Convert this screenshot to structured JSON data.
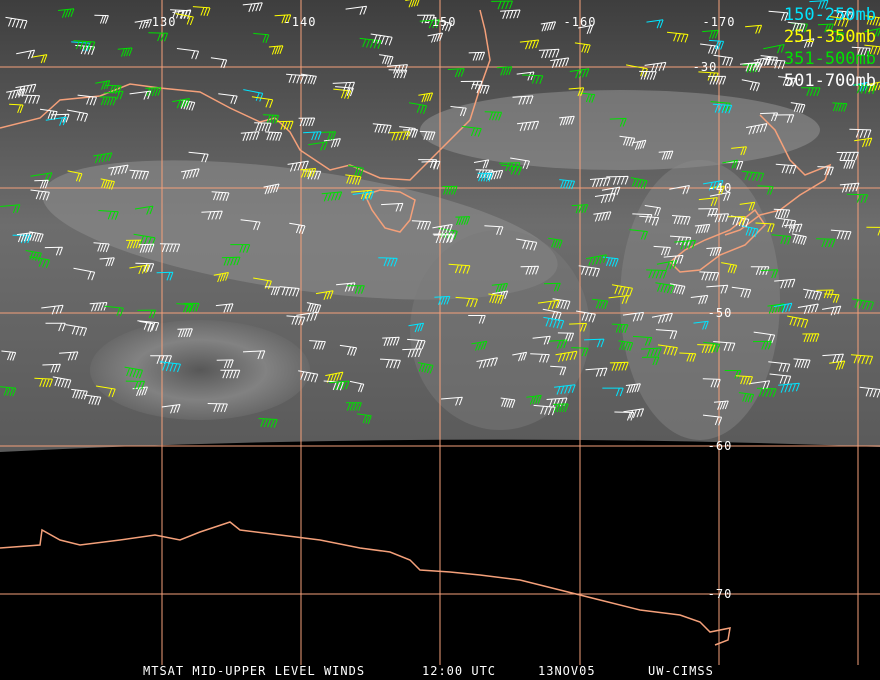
{
  "map": {
    "longitude_labels": [
      "-130",
      "-140",
      "-150",
      "-160",
      "-170"
    ],
    "latitude_labels": [
      "-30",
      "-40",
      "-50",
      "-60",
      "-70"
    ],
    "colors": {
      "grid": "#f4a07a",
      "coast": "#f4a07a",
      "background": "#000000"
    }
  },
  "legend": [
    {
      "label": "150-250mb",
      "color": "#00e5ff"
    },
    {
      "label": "251-350mb",
      "color": "#ffff00"
    },
    {
      "label": "351-500mb",
      "color": "#00e000"
    },
    {
      "label": "501-700mb",
      "color": "#ffffff"
    }
  ],
  "footer": {
    "product": "MTSAT MID-UPPER LEVEL WINDS",
    "time": "12:00 UTC",
    "date": "13NOV05",
    "source": "UW-CIMSS"
  }
}
